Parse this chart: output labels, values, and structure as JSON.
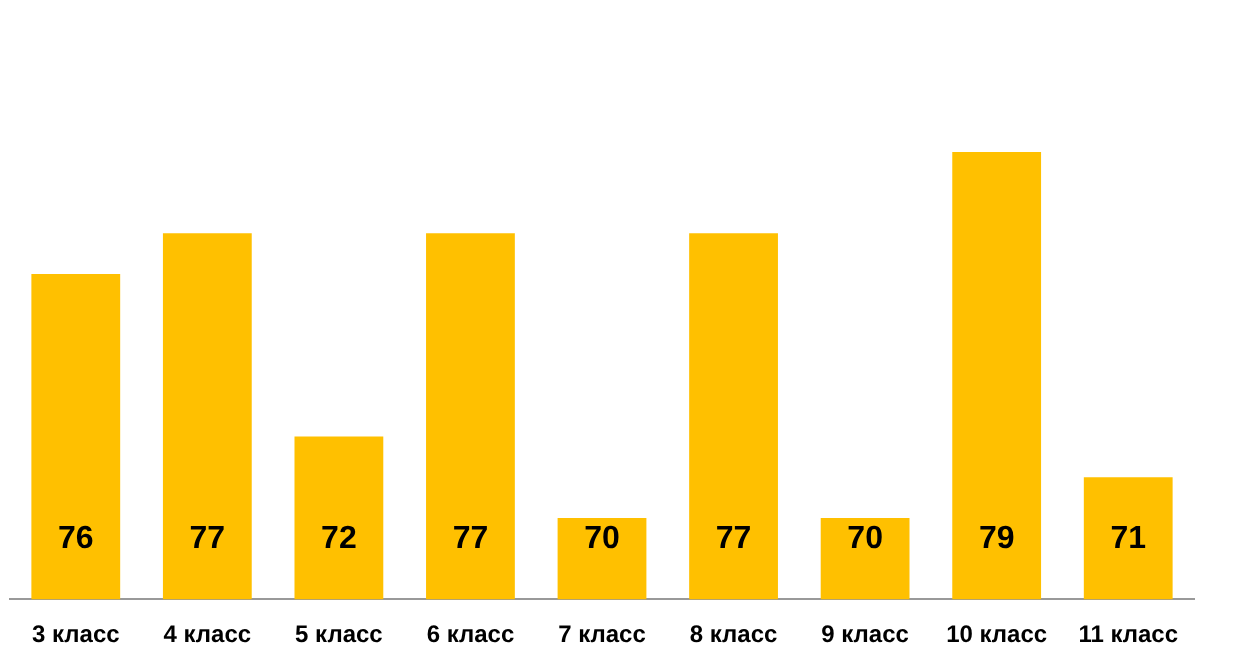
{
  "chart_data": {
    "type": "bar",
    "categories": [
      "3 класс",
      "4 класс",
      "5 класс",
      "6 класс",
      "7 класс",
      "8 класс",
      "9 класс",
      "10 класс",
      "11 класс"
    ],
    "values": [
      76,
      77,
      72,
      77,
      70,
      77,
      70,
      79,
      71
    ],
    "color": "#ffc000",
    "data_labels": true,
    "grid": false,
    "legend": false,
    "tick_labels": "x"
  }
}
